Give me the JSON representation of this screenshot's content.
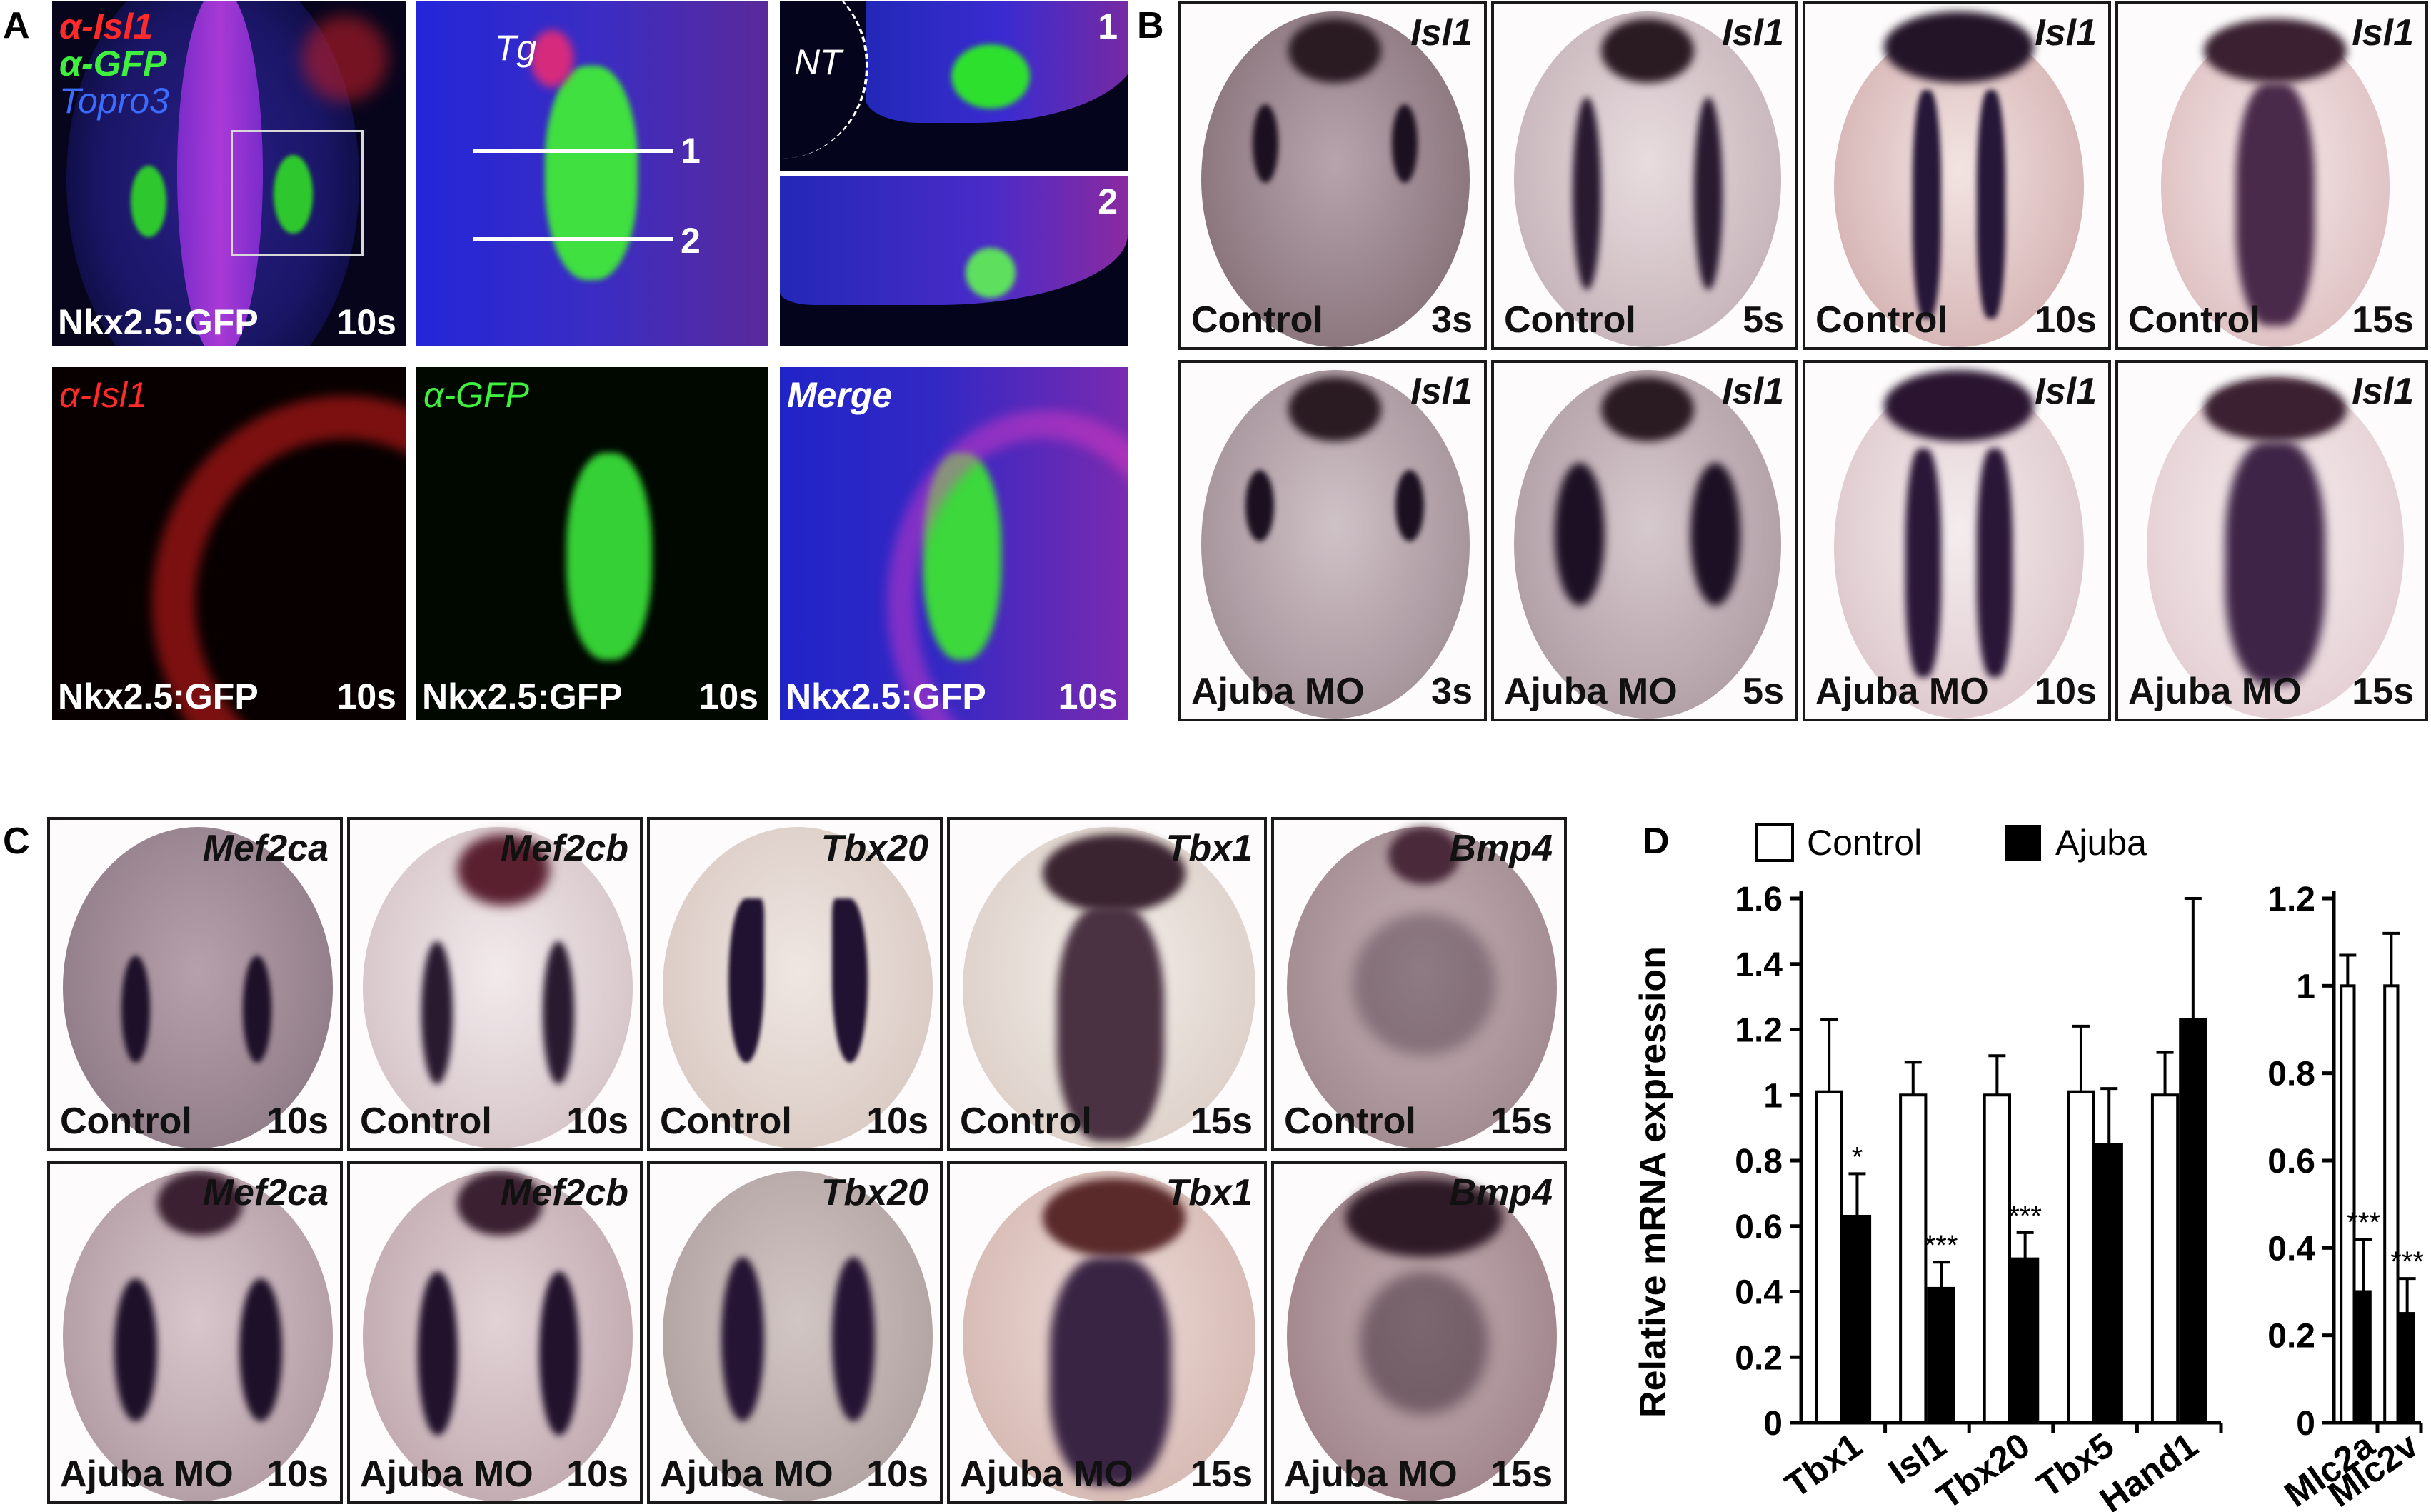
{
  "panel_labels": {
    "a": "A",
    "b": "B",
    "c": "C",
    "d": "D"
  },
  "panel_a": {
    "overview": {
      "marker1": "α-Isl1",
      "marker2": "α-GFP",
      "marker3": "Topro3",
      "line": "Nkx2.5:GFP",
      "stage": "10s"
    },
    "zoom": {
      "tg": "Tg",
      "line1": "1",
      "line2": "2"
    },
    "section1": {
      "nt": "NT",
      "num": "1"
    },
    "section2": {
      "num": "2"
    },
    "isl1": {
      "marker": "α-Isl1",
      "line": "Nkx2.5:GFP",
      "stage": "10s"
    },
    "gfp": {
      "marker": "α-GFP",
      "line": "Nkx2.5:GFP",
      "stage": "10s"
    },
    "merge": {
      "marker": "Merge",
      "line": "Nkx2.5:GFP",
      "stage": "10s"
    },
    "colors": {
      "red": "#ff2a2a",
      "green": "#3ff03f",
      "blue": "#2a40ff"
    }
  },
  "panel_b": {
    "gene": "Isl1",
    "rows": [
      {
        "condition": "Control",
        "stages": [
          "3s",
          "5s",
          "10s",
          "15s"
        ]
      },
      {
        "condition": "Ajuba MO",
        "stages": [
          "3s",
          "5s",
          "10s",
          "15s"
        ]
      }
    ]
  },
  "panel_c": {
    "genes": [
      "Mef2ca",
      "Mef2cb",
      "Tbx20",
      "Tbx1",
      "Bmp4"
    ],
    "rows": [
      {
        "condition": "Control",
        "stages": [
          "10s",
          "10s",
          "10s",
          "15s",
          "15s"
        ]
      },
      {
        "condition": "Ajuba MO",
        "stages": [
          "10s",
          "10s",
          "10s",
          "15s",
          "15s"
        ]
      }
    ]
  },
  "chart_data": [
    {
      "type": "bar",
      "ylabel": "Relative mRNA expression",
      "ylim": [
        0,
        1.6
      ],
      "yticks": [
        "0",
        "0.2",
        "0.4",
        "0.6",
        "0.8",
        "1",
        "1.2",
        "1.4",
        "1.6"
      ],
      "categories": [
        "Tbx1",
        "Isl1",
        "Tbx20",
        "Tbx5",
        "Hand1"
      ],
      "series": [
        {
          "name": "Control",
          "values": [
            1.01,
            1.0,
            1.0,
            1.01,
            1.0
          ],
          "errors": [
            0.22,
            0.1,
            0.12,
            0.2,
            0.13
          ],
          "color": "#ffffff"
        },
        {
          "name": "Ajuba",
          "values": [
            0.63,
            0.41,
            0.5,
            0.85,
            1.23
          ],
          "errors": [
            0.13,
            0.08,
            0.08,
            0.17,
            0.37
          ],
          "color": "#000000"
        }
      ],
      "significance": [
        "*",
        "***",
        "***",
        "",
        ""
      ]
    },
    {
      "type": "bar",
      "ylim": [
        0,
        1.2
      ],
      "yticks": [
        "0",
        "0.2",
        "0.4",
        "0.6",
        "0.8",
        "1",
        "1.2"
      ],
      "categories": [
        "Mlc2a",
        "Mlc2v"
      ],
      "series": [
        {
          "name": "Control",
          "values": [
            1.0,
            1.0
          ],
          "errors": [
            0.07,
            0.12
          ],
          "color": "#ffffff"
        },
        {
          "name": "Ajuba",
          "values": [
            0.3,
            0.25
          ],
          "errors": [
            0.12,
            0.08
          ],
          "color": "#000000"
        }
      ],
      "significance": [
        "***",
        "***"
      ]
    }
  ],
  "legend": {
    "control": "Control",
    "ajuba": "Ajuba"
  }
}
